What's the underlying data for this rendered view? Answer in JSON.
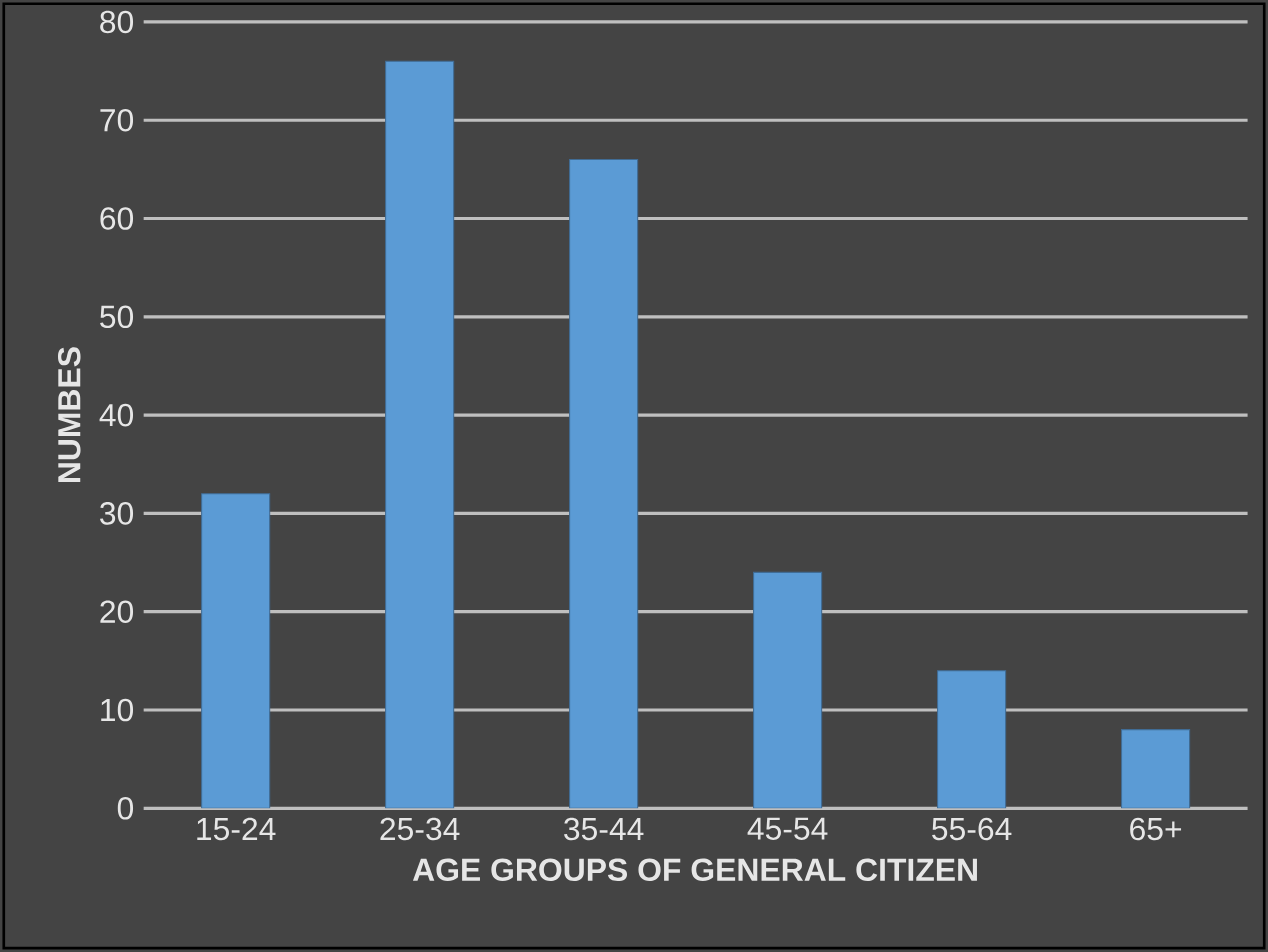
{
  "chart_data": {
    "type": "bar",
    "xlabel": "AGE GROUPS OF GENERAL CITIZEN",
    "ylabel": "NUMBES",
    "categories": [
      "15-24",
      "25-34",
      "35-44",
      "45-54",
      "55-64",
      "65+"
    ],
    "values": [
      32,
      76,
      66,
      24,
      14,
      8
    ],
    "color": "#5b9bd5",
    "ylim": [
      0,
      80
    ],
    "yticks": [
      0,
      10,
      20,
      30,
      40,
      50,
      60,
      70,
      80
    ],
    "grid": "y"
  }
}
